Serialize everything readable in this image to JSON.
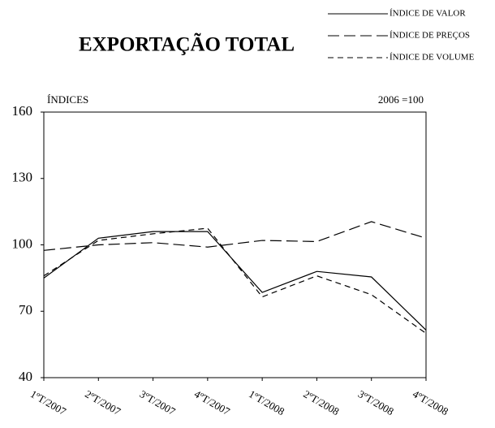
{
  "chart_data": {
    "type": "line",
    "title": "EXPORTAÇÃO TOTAL",
    "y_label": "ÍNDICES",
    "note": "2006 =100",
    "categories": [
      "1ºT/2007",
      "2ºT/2007",
      "3ºT/2007",
      "4ºT/2007",
      "1ºT/2008",
      "2ºT/2008",
      "3ºT/2008",
      "4ºT/2008"
    ],
    "series": [
      {
        "name": "ÍNDICE DE VALOR",
        "color": "#000000",
        "style": "solid",
        "values": [
          85,
          103,
          106,
          106,
          78.5,
          88,
          85.5,
          61.5
        ]
      },
      {
        "name": "ÍNDICE DE PREÇOS",
        "color": "#000000",
        "style": "long-dash",
        "values": [
          97.5,
          100,
          101,
          99,
          102,
          101.5,
          110.5,
          103
        ]
      },
      {
        "name": "ÍNDICE DE VOLUME",
        "color": "#000000",
        "style": "dash",
        "values": [
          86,
          102,
          105,
          107.5,
          76.5,
          86,
          77.5,
          60
        ]
      }
    ],
    "ylim": [
      40,
      160
    ],
    "yticks": [
      40,
      70,
      100,
      130,
      160
    ],
    "grid": false,
    "legend": "top-right"
  }
}
